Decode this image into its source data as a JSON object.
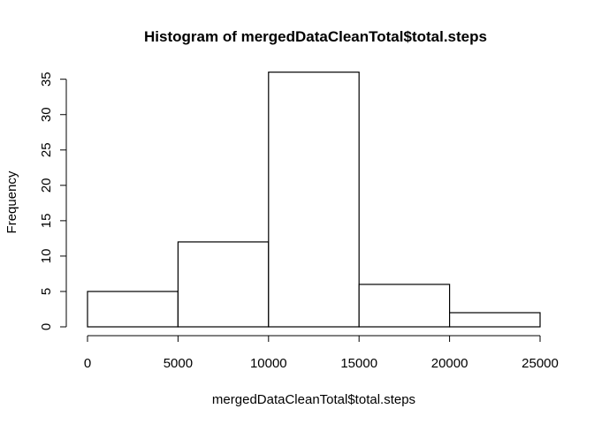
{
  "chart_data": {
    "type": "bar",
    "title": "Histogram of mergedDataCleanTotal$total.steps",
    "xlabel": "mergedDataCleanTotal$total.steps",
    "ylabel": "Frequency",
    "bins": [
      {
        "start": 0,
        "end": 5000,
        "count": 5
      },
      {
        "start": 5000,
        "end": 10000,
        "count": 12
      },
      {
        "start": 10000,
        "end": 15000,
        "count": 36
      },
      {
        "start": 15000,
        "end": 20000,
        "count": 6
      },
      {
        "start": 20000,
        "end": 25000,
        "count": 2
      }
    ],
    "xlim": [
      0,
      25000
    ],
    "ylim": [
      0,
      35
    ],
    "x_ticks": [
      0,
      5000,
      10000,
      15000,
      20000,
      25000
    ],
    "y_ticks": [
      0,
      5,
      10,
      15,
      20,
      25,
      30,
      35
    ],
    "grid": false
  }
}
